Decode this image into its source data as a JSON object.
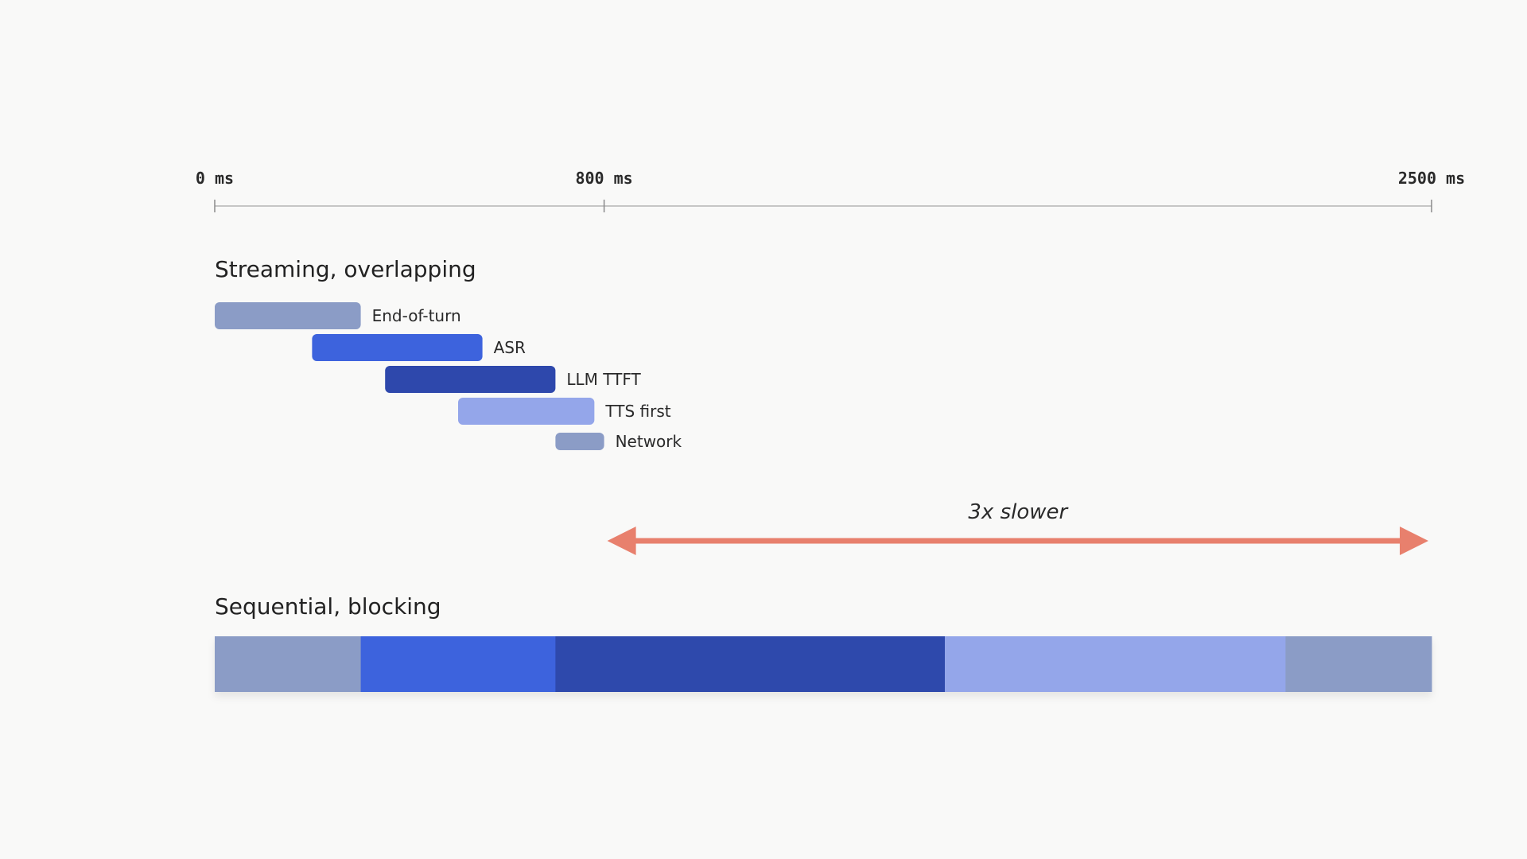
{
  "chart_data": {
    "type": "gantt",
    "axis": {
      "ticks": [
        {
          "value": 0,
          "label": "0 ms"
        },
        {
          "value": 800,
          "label": "800 ms"
        },
        {
          "value": 2500,
          "label": "2500 ms"
        }
      ],
      "range": [
        0,
        2500
      ]
    },
    "streaming": {
      "title": "Streaming, overlapping",
      "bars": [
        {
          "label": "End-of-turn",
          "start": 0,
          "end": 300,
          "color": "#8b9cc6"
        },
        {
          "label": "ASR",
          "start": 200,
          "end": 550,
          "color": "#3d63dd"
        },
        {
          "label": "LLM TTFT",
          "start": 350,
          "end": 700,
          "color": "#2e48ac"
        },
        {
          "label": "TTS first",
          "start": 500,
          "end": 780,
          "color": "#94a6ea"
        },
        {
          "label": "Network",
          "start": 700,
          "end": 800,
          "color": "#8b9cc6"
        }
      ]
    },
    "comparison": {
      "label": "3x slower",
      "from": 800,
      "to": 2500,
      "color": "#e8806d"
    },
    "sequential": {
      "title": "Sequential, blocking",
      "segments": [
        {
          "start": 0,
          "end": 300,
          "color": "#8b9cc6"
        },
        {
          "start": 300,
          "end": 700,
          "color": "#3d63dd"
        },
        {
          "start": 700,
          "end": 1500,
          "color": "#2e48ac"
        },
        {
          "start": 1500,
          "end": 2200,
          "color": "#94a6ea"
        },
        {
          "start": 2200,
          "end": 2500,
          "color": "#8b9cc6"
        }
      ]
    }
  }
}
